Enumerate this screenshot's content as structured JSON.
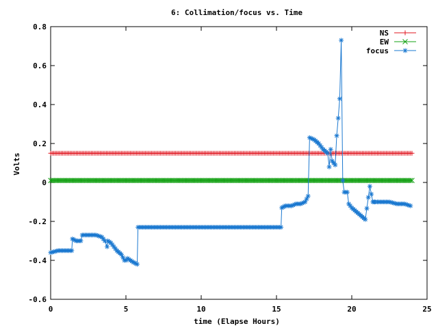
{
  "chart_data": {
    "type": "line",
    "title": "6: Collimation/focus vs. Time",
    "xlabel": "time (Elapse Hours)",
    "ylabel": "Volts",
    "xlim": [
      0,
      25
    ],
    "ylim": [
      -0.6,
      0.8
    ],
    "xticks": [
      "0",
      "5",
      "10",
      "15",
      "20",
      "25"
    ],
    "yticks": [
      "0.8",
      "0.6",
      "0.4",
      "0.2",
      "0",
      "-0.2",
      "-0.4",
      "-0.6"
    ],
    "legend_position": "top-right",
    "grid": false,
    "series": [
      {
        "name": "NS",
        "color": "#e0141e",
        "marker": "plus",
        "x": [
          0.0,
          24.0
        ],
        "y": [
          0.15,
          0.15
        ]
      },
      {
        "name": "EW",
        "color": "#13a013",
        "marker": "cross",
        "x": [
          0.0,
          24.0
        ],
        "y": [
          0.01,
          0.01
        ]
      },
      {
        "name": "focus",
        "color": "#1a78d0",
        "marker": "star",
        "x": [
          0.0,
          0.5,
          1.0,
          1.4,
          1.45,
          1.7,
          2.0,
          2.1,
          2.4,
          3.0,
          3.4,
          3.6,
          3.75,
          3.8,
          4.0,
          4.2,
          4.4,
          4.7,
          4.9,
          5.0,
          5.1,
          5.3,
          5.5,
          5.75,
          5.8,
          8.0,
          11.0,
          13.0,
          15.3,
          15.35,
          15.6,
          16.0,
          16.3,
          16.6,
          16.9,
          17.1,
          17.2,
          17.5,
          17.8,
          18.1,
          18.4,
          18.5,
          18.6,
          18.7,
          18.8,
          18.9,
          19.0,
          19.1,
          19.2,
          19.3,
          19.4,
          19.5,
          19.6,
          19.7,
          19.8,
          19.9,
          20.0,
          20.3,
          20.6,
          20.9,
          21.2,
          21.4,
          21.5,
          21.55,
          21.7,
          22.0,
          22.5,
          23.0,
          23.5,
          23.9
        ],
        "y": [
          -0.36,
          -0.35,
          -0.35,
          -0.35,
          -0.29,
          -0.3,
          -0.3,
          -0.27,
          -0.27,
          -0.27,
          -0.28,
          -0.3,
          -0.33,
          -0.3,
          -0.31,
          -0.33,
          -0.35,
          -0.37,
          -0.4,
          -0.4,
          -0.39,
          -0.4,
          -0.41,
          -0.42,
          -0.23,
          -0.23,
          -0.23,
          -0.23,
          -0.23,
          -0.13,
          -0.12,
          -0.12,
          -0.11,
          -0.11,
          -0.1,
          -0.07,
          0.23,
          0.22,
          0.2,
          0.17,
          0.15,
          0.08,
          0.17,
          0.11,
          0.1,
          0.09,
          0.24,
          0.33,
          0.43,
          0.73,
          0.01,
          -0.05,
          -0.05,
          -0.05,
          -0.11,
          -0.12,
          -0.13,
          -0.15,
          -0.17,
          -0.19,
          -0.02,
          -0.1,
          -0.1,
          -0.1,
          -0.1,
          -0.1,
          -0.1,
          -0.11,
          -0.11,
          -0.12
        ]
      }
    ]
  }
}
